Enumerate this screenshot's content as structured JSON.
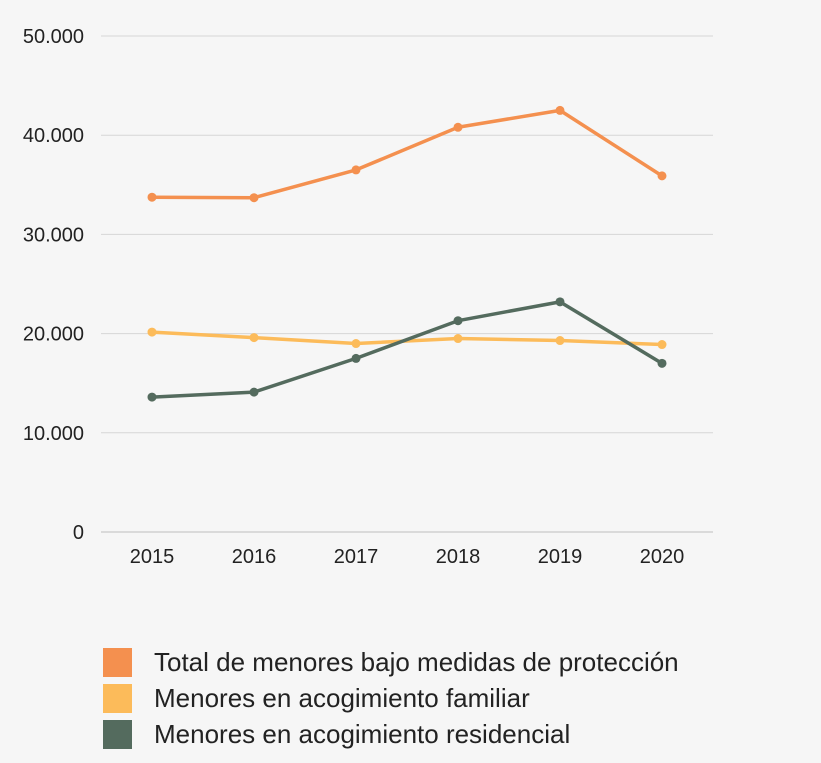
{
  "chart_data": {
    "type": "line",
    "categories": [
      "2015",
      "2016",
      "2017",
      "2018",
      "2019",
      "2020"
    ],
    "y_ticks": [
      0,
      10000,
      20000,
      30000,
      40000,
      50000
    ],
    "y_tick_labels": [
      "0",
      "10.000",
      "20.000",
      "30.000",
      "40.000",
      "50.000"
    ],
    "ylim": [
      0,
      50000
    ],
    "grid": true,
    "legend_position": "bottom",
    "series": [
      {
        "name": "Total de menores bajo medidas de protección",
        "color": "#f4904f",
        "values": [
          33750,
          33700,
          36500,
          40800,
          42500,
          35900
        ]
      },
      {
        "name": "Menores en acogimiento familiar",
        "color": "#fcbb5a",
        "values": [
          20150,
          19600,
          19000,
          19500,
          19300,
          18900
        ]
      },
      {
        "name": "Menores en acogimiento residencial",
        "color": "#546b5e",
        "values": [
          13600,
          14100,
          17500,
          21300,
          23200,
          17000
        ]
      }
    ]
  }
}
